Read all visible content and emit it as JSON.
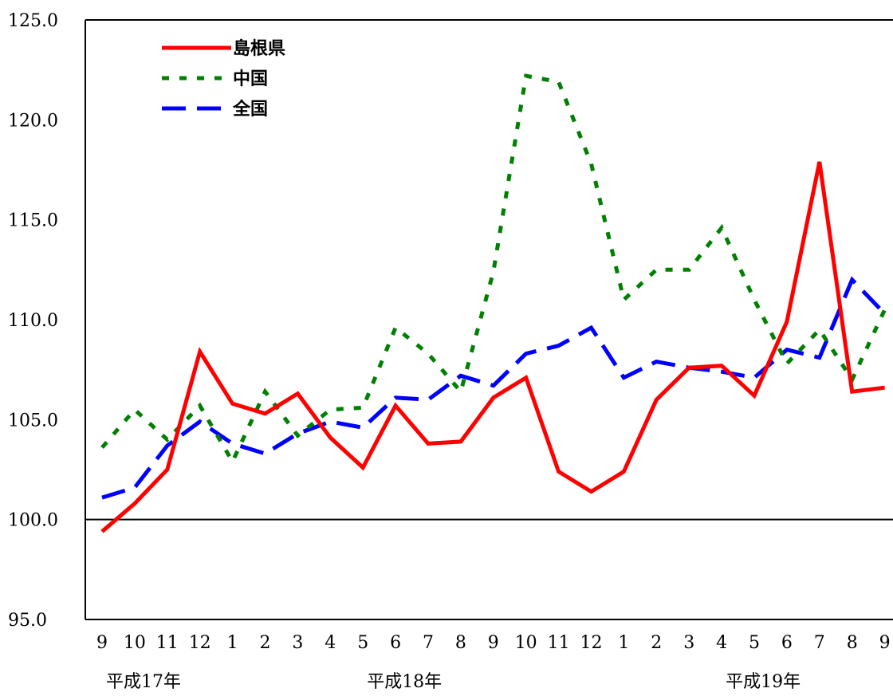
{
  "chart_data": {
    "type": "line",
    "title": "",
    "xlabel": "",
    "ylabel": "",
    "ylim": [
      95.0,
      125.0
    ],
    "yticks": [
      "95.0",
      "100.0",
      "105.0",
      "110.0",
      "115.0",
      "120.0",
      "125.0"
    ],
    "reference_line": 100.0,
    "categories": [
      "9",
      "10",
      "11",
      "12",
      "1",
      "2",
      "3",
      "4",
      "5",
      "6",
      "7",
      "8",
      "9",
      "10",
      "11",
      "12",
      "1",
      "2",
      "3",
      "4",
      "5",
      "6",
      "7",
      "8",
      "9"
    ],
    "year_labels": [
      {
        "label": "平成17年",
        "at_index": 0
      },
      {
        "label": "平成18年",
        "at_index": 8
      },
      {
        "label": "平成19年",
        "at_index": 19
      }
    ],
    "legend_position": "top-left",
    "grid": false,
    "series": [
      {
        "name": "島根県",
        "color": "#ff0000",
        "style": "solid",
        "values": [
          99.4,
          100.8,
          102.5,
          108.4,
          105.8,
          105.3,
          106.3,
          104.1,
          102.6,
          105.7,
          103.8,
          103.9,
          106.1,
          107.1,
          102.4,
          101.4,
          102.4,
          106.0,
          107.6,
          107.7,
          106.2,
          109.9,
          117.9,
          106.4,
          106.6
        ]
      },
      {
        "name": "中国",
        "color": "#008000",
        "style": "dotted",
        "values": [
          103.6,
          105.5,
          104.0,
          105.7,
          102.9,
          106.4,
          104.2,
          105.5,
          105.6,
          109.6,
          108.3,
          106.4,
          112.4,
          122.2,
          121.9,
          117.8,
          111.0,
          112.5,
          112.5,
          114.6,
          111.0,
          107.8,
          109.5,
          107.0,
          110.5
        ]
      },
      {
        "name": "全国",
        "color": "#0000ff",
        "style": "dashed",
        "values": [
          101.1,
          101.6,
          103.7,
          104.9,
          103.8,
          103.3,
          104.3,
          104.9,
          104.6,
          106.1,
          106.0,
          107.2,
          106.7,
          108.3,
          108.7,
          109.6,
          107.1,
          107.9,
          107.6,
          107.4,
          107.1,
          108.5,
          108.1,
          112.0,
          110.3
        ]
      }
    ]
  }
}
